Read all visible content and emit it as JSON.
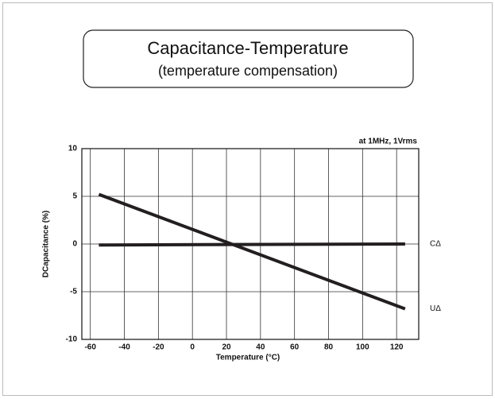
{
  "chart_data": {
    "type": "line",
    "title": "Capacitance-Temperature",
    "subtitle": "(temperature compensation)",
    "annotation": "at   1MHz,  1Vrms",
    "x_label": "Temperature (°C)",
    "y_label": "DCapacitance (%)",
    "x": [
      -55,
      125
    ],
    "series": [
      {
        "name": "CΔ",
        "color": "#231f20",
        "values": [
          -0.1,
          0
        ]
      },
      {
        "name": "UΔ",
        "color": "#231f20",
        "values": [
          5.2,
          -6.8
        ]
      }
    ],
    "xlim": [
      -65,
      133
    ],
    "xticks": [
      -60,
      -40,
      -20,
      0,
      20,
      40,
      60,
      80,
      100,
      120
    ],
    "ylim": [
      -10,
      10
    ],
    "yticks": [
      -10,
      -5,
      0,
      5,
      10
    ],
    "grid": true
  }
}
